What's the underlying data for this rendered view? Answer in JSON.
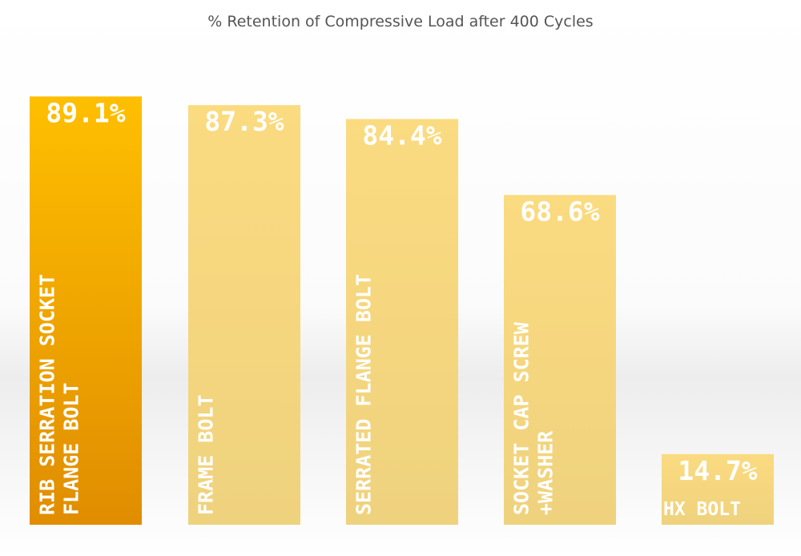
{
  "chart_data": {
    "type": "bar",
    "title": "% Retention of Compressive Load after 400 Cycles",
    "categories": [
      [
        "RIB SERRATION SOCKET",
        "FLANGE BOLT"
      ],
      [
        "FRAME BOLT"
      ],
      [
        "SERRATED FLANGE BOLT"
      ],
      [
        "SOCKET CAP SCREW",
        "+WASHER"
      ],
      [
        "HX BOLT"
      ]
    ],
    "values": [
      89.1,
      87.3,
      84.4,
      68.6,
      14.7
    ],
    "value_labels": [
      "89.1%",
      "87.3%",
      "84.4%",
      "68.6%",
      "14.7%"
    ],
    "ylim": [
      0,
      100
    ],
    "highlight_index": 0,
    "colors": {
      "highlight_top": "#ffbf00",
      "highlight_bottom": "#e08d00",
      "bar_top": "#fbdb80",
      "bar_bottom": "#efd27e"
    }
  }
}
